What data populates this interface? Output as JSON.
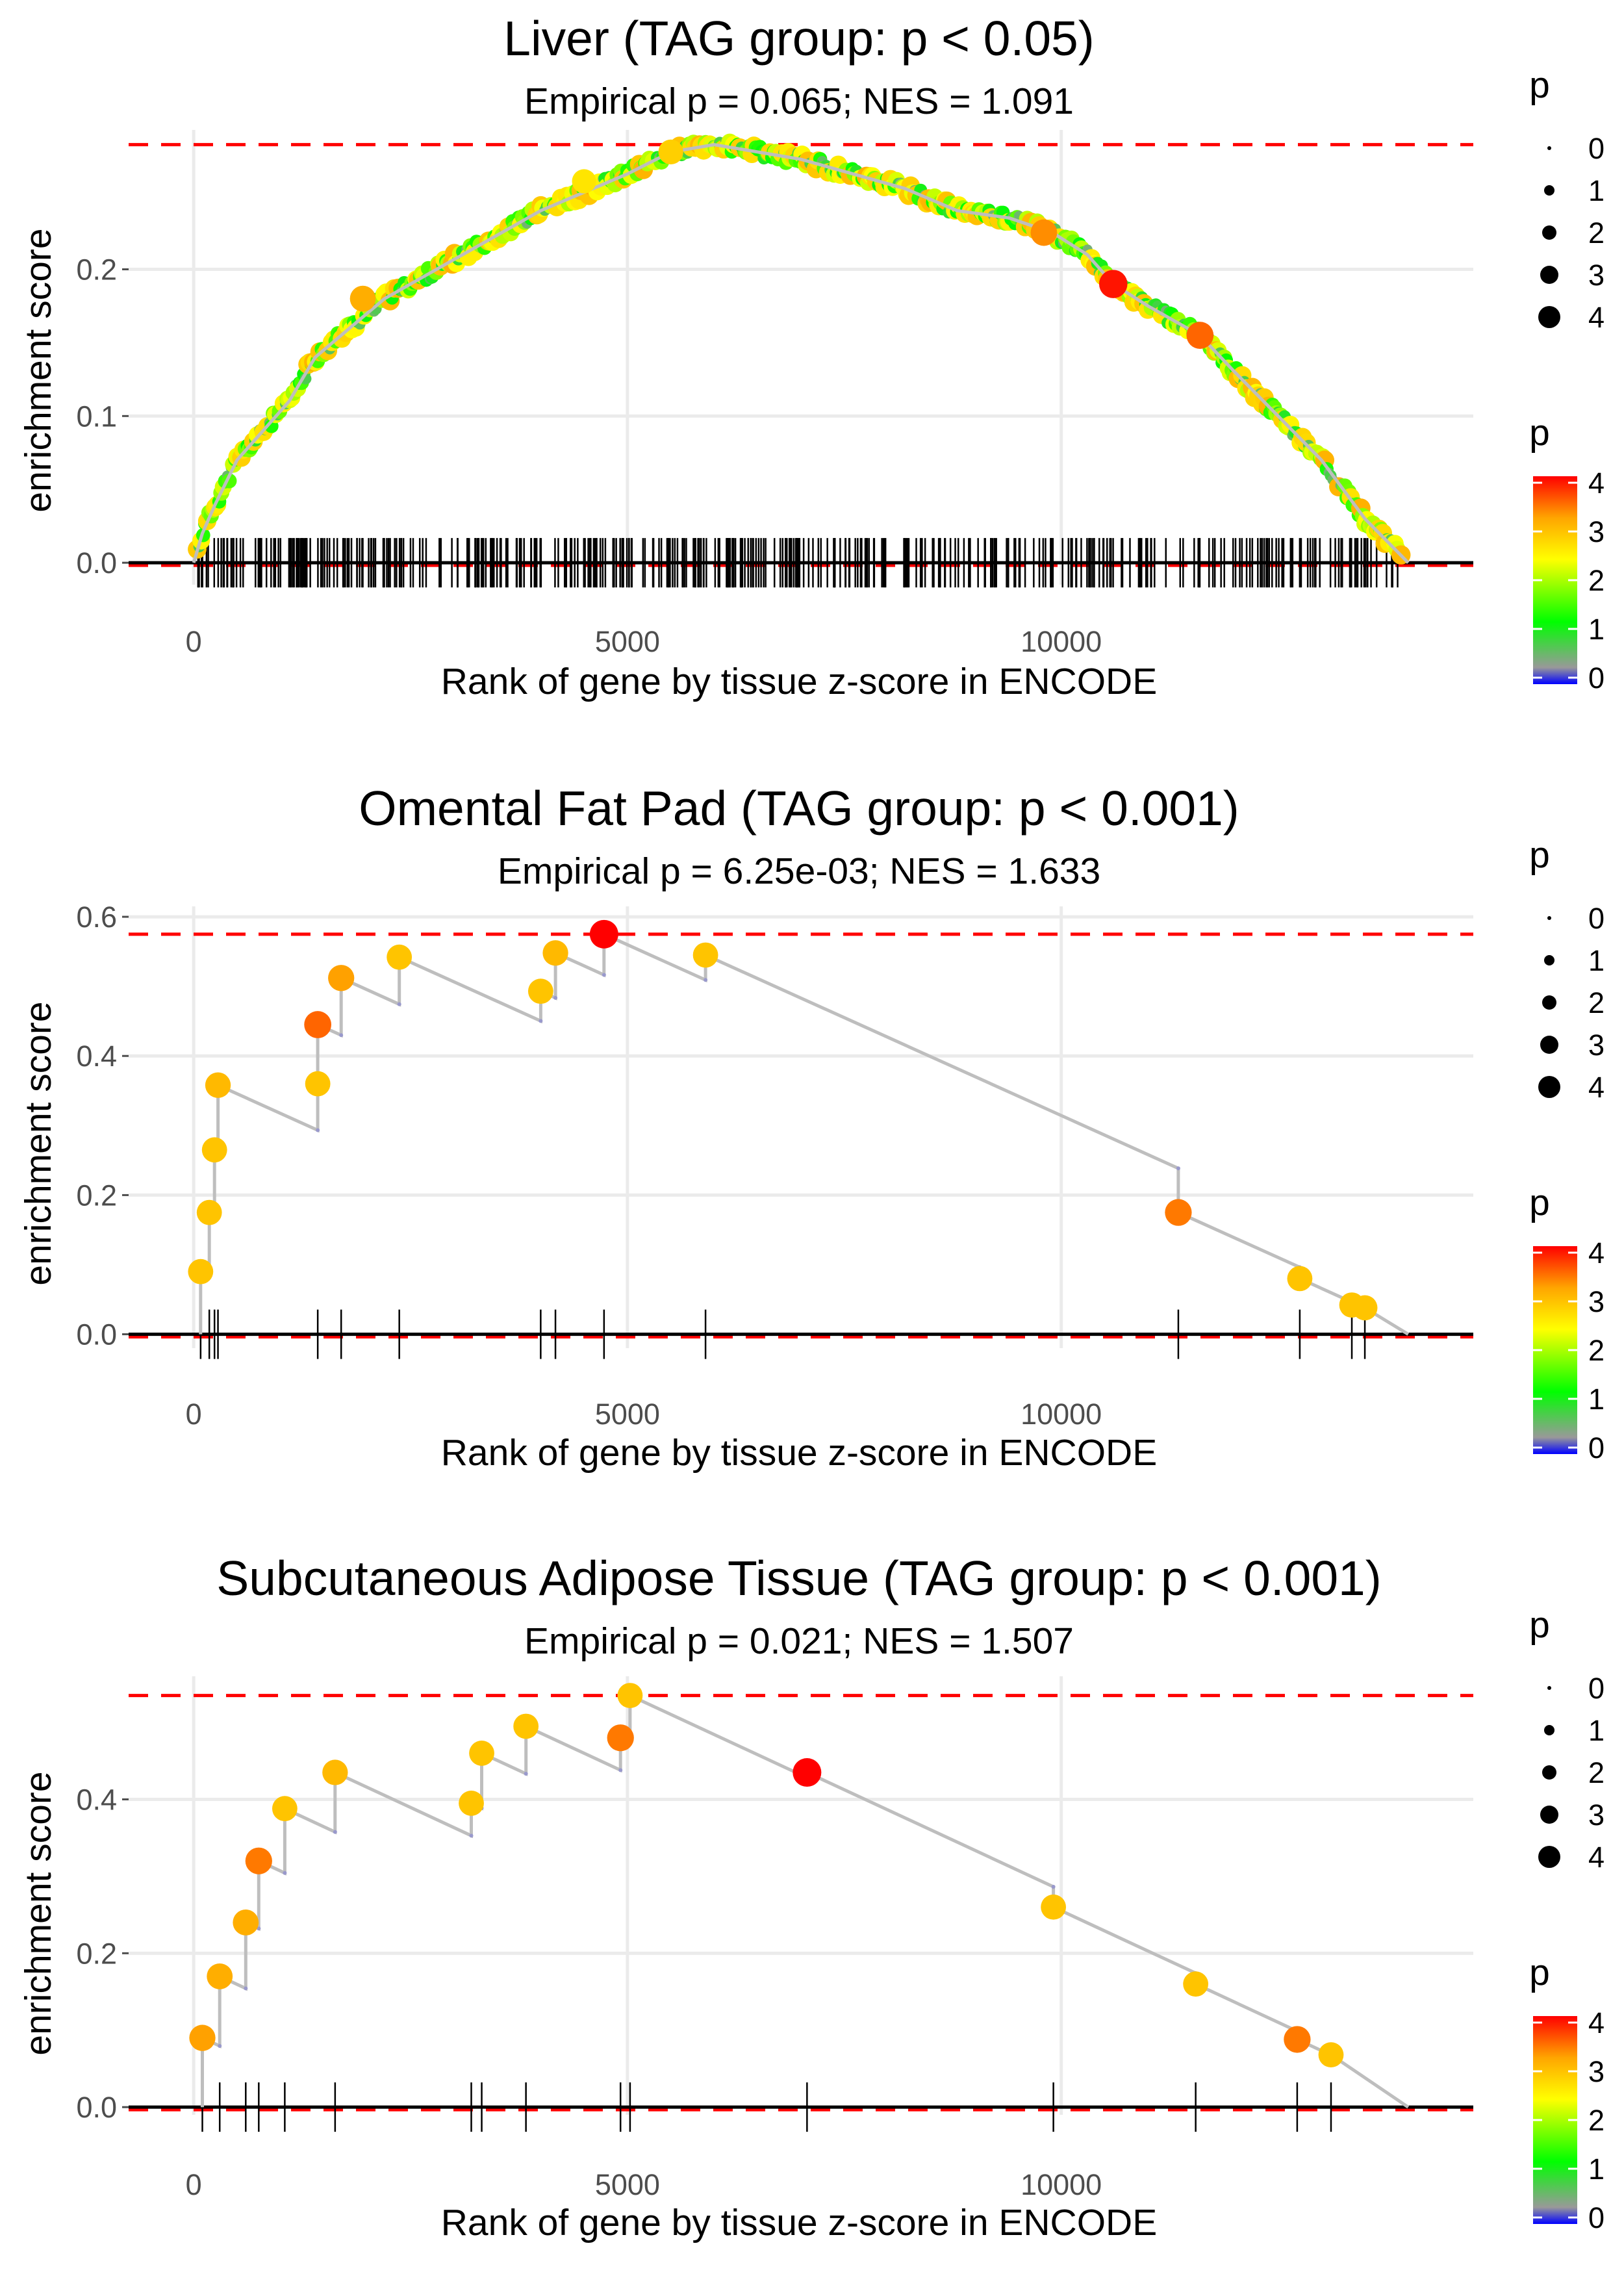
{
  "colors": {
    "gradient": [
      "#0000ff",
      "#999999",
      "#00ff00",
      "#ffff00",
      "#ffa500",
      "#ff0000"
    ],
    "line": "#bebebe",
    "ref": "#ff0000"
  },
  "legend": {
    "size_title": "p",
    "size_labels": [
      "0",
      "1",
      "2",
      "3",
      "4"
    ],
    "color_title": "p",
    "color_labels": [
      "4",
      "3",
      "2",
      "1",
      "0"
    ]
  },
  "chart_data": [
    {
      "type": "scatter",
      "title": "Liver (TAG group: p < 0.05)",
      "subtitle": "Empirical p = 0.065; NES = 1.091",
      "xlabel": "Rank of gene by tissue z-score in ENCODE",
      "ylabel": "enrichment score",
      "xlim": [
        -750,
        14750
      ],
      "ylim": [
        -0.015,
        0.295
      ],
      "xticks": [
        0,
        5000,
        10000
      ],
      "xtick_labels": [
        "0",
        "5000",
        "10000"
      ],
      "yticks": [
        0.0,
        0.1,
        0.2
      ],
      "ytick_labels": [
        "0.0",
        "0.1",
        "0.2"
      ],
      "max_es": 0.285,
      "n_genes": 14000,
      "curve": [
        [
          0,
          0
        ],
        [
          100,
          0.02
        ],
        [
          250,
          0.04
        ],
        [
          500,
          0.07
        ],
        [
          800,
          0.09
        ],
        [
          1100,
          0.11
        ],
        [
          1400,
          0.14
        ],
        [
          1800,
          0.16
        ],
        [
          2200,
          0.18
        ],
        [
          2800,
          0.2
        ],
        [
          3400,
          0.22
        ],
        [
          4000,
          0.24
        ],
        [
          4600,
          0.255
        ],
        [
          5000,
          0.265
        ],
        [
          5500,
          0.28
        ],
        [
          6000,
          0.285
        ],
        [
          6500,
          0.28
        ],
        [
          7000,
          0.275
        ],
        [
          7600,
          0.265
        ],
        [
          8200,
          0.255
        ],
        [
          8800,
          0.24
        ],
        [
          9400,
          0.235
        ],
        [
          9900,
          0.225
        ],
        [
          10300,
          0.21
        ],
        [
          10600,
          0.19
        ],
        [
          11000,
          0.175
        ],
        [
          11600,
          0.155
        ],
        [
          12000,
          0.13
        ],
        [
          12500,
          0.1
        ],
        [
          13000,
          0.07
        ],
        [
          13500,
          0.03
        ],
        [
          14000,
          0
        ]
      ],
      "highlight_points": [
        [
          10600,
          0.19,
          4.0
        ],
        [
          11600,
          0.155,
          3.6
        ],
        [
          9800,
          0.225,
          3.4
        ],
        [
          1950,
          0.18,
          3.2
        ],
        [
          5500,
          0.28,
          2.9
        ],
        [
          4500,
          0.26,
          2.7
        ]
      ],
      "dense_rug": {
        "start": 50,
        "end": 13950,
        "count": 420
      }
    },
    {
      "type": "scatter",
      "title": "Omental Fat Pad (TAG group: p < 0.001)",
      "subtitle": "Empirical p = 6.25e-03; NES = 1.633",
      "xlabel": "Rank of gene by tissue z-score in ENCODE",
      "ylabel": "enrichment score",
      "xlim": [
        -750,
        14750
      ],
      "ylim": [
        -0.02,
        0.615
      ],
      "xticks": [
        0,
        5000,
        10000
      ],
      "xtick_labels": [
        "0",
        "5000",
        "10000"
      ],
      "yticks": [
        0.0,
        0.2,
        0.4,
        0.6
      ],
      "ytick_labels": [
        "0.0",
        "0.2",
        "0.4",
        "0.6"
      ],
      "max_es": 0.575,
      "n_genes": 14000,
      "hits": [
        [
          80,
          0.09,
          3.0
        ],
        [
          180,
          0.175,
          3.0
        ],
        [
          240,
          0.265,
          3.0
        ],
        [
          280,
          0.358,
          3.1
        ],
        [
          1430,
          0.36,
          3.0
        ],
        [
          1430,
          0.445,
          3.6
        ],
        [
          1700,
          0.512,
          3.3
        ],
        [
          2370,
          0.542,
          3.0
        ],
        [
          4000,
          0.493,
          3.0
        ],
        [
          4170,
          0.548,
          3.1
        ],
        [
          4730,
          0.575,
          4.1
        ],
        [
          5900,
          0.545,
          3.0
        ],
        [
          11350,
          0.175,
          3.5
        ],
        [
          12750,
          0.08,
          3.0
        ],
        [
          13350,
          0.042,
          3.0
        ],
        [
          13500,
          0.038,
          3.0
        ]
      ],
      "end": [
        14000,
        0.0
      ]
    },
    {
      "type": "scatter",
      "title": "Subcutaneous Adipose Tissue (TAG group: p < 0.001)",
      "subtitle": "Empirical p = 0.021; NES = 1.507",
      "xlabel": "Rank of gene by tissue z-score in ENCODE",
      "ylabel": "enrichment score",
      "xlim": [
        -750,
        14750
      ],
      "ylim": [
        -0.01,
        0.56
      ],
      "xticks": [
        0,
        5000,
        10000
      ],
      "xtick_labels": [
        "0",
        "5000",
        "10000"
      ],
      "yticks": [
        0.0,
        0.2,
        0.4
      ],
      "ytick_labels": [
        "0.0",
        "0.2",
        "0.4"
      ],
      "max_es": 0.535,
      "n_genes": 14000,
      "hits": [
        [
          100,
          0.09,
          3.3
        ],
        [
          300,
          0.17,
          3.2
        ],
        [
          600,
          0.24,
          3.2
        ],
        [
          750,
          0.32,
          3.5
        ],
        [
          1050,
          0.388,
          3.0
        ],
        [
          1630,
          0.435,
          3.1
        ],
        [
          3200,
          0.395,
          3.0
        ],
        [
          3320,
          0.46,
          3.0
        ],
        [
          3830,
          0.495,
          3.0
        ],
        [
          4920,
          0.48,
          3.5
        ],
        [
          5030,
          0.535,
          3.0
        ],
        [
          7070,
          0.435,
          4.1
        ],
        [
          9910,
          0.26,
          3.0
        ],
        [
          11550,
          0.16,
          3.0
        ],
        [
          12720,
          0.088,
          3.5
        ],
        [
          13110,
          0.068,
          3.0
        ]
      ],
      "end": [
        14000,
        0.0
      ]
    }
  ]
}
